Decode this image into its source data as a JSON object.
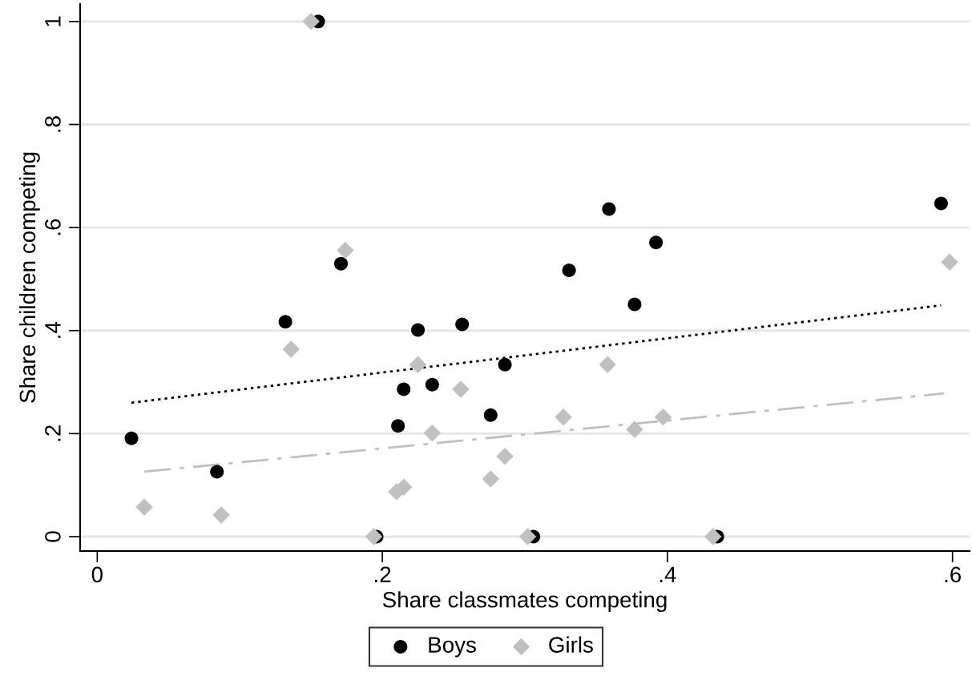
{
  "chart_data": {
    "type": "scatter",
    "xlabel": "Share classmates competing",
    "ylabel": "Share children competing",
    "xlim": [
      -0.012,
      0.612
    ],
    "ylim": [
      -0.028,
      1.034
    ],
    "xticks": [
      0,
      {
        "value": 0.2,
        "label": ".2"
      },
      {
        "value": 0.4,
        "label": ".4"
      },
      {
        "value": 0.6,
        "label": ".6"
      }
    ],
    "yticks": [
      0,
      {
        "value": 0.2,
        "label": ".2"
      },
      {
        "value": 0.4,
        "label": ".4"
      },
      {
        "value": 0.6,
        "label": ".6"
      },
      {
        "value": 0.8,
        "label": ".8"
      },
      1
    ],
    "grid": "y",
    "legend": "bottom",
    "series": [
      {
        "name": "Boys",
        "marker": "circle",
        "color": "#000000",
        "x": [
          0.024,
          0.084,
          0.132,
          0.155,
          0.171,
          0.211,
          0.215,
          0.235,
          0.225,
          0.256,
          0.276,
          0.286,
          0.196,
          0.331,
          0.359,
          0.377,
          0.392,
          0.592,
          0.306,
          0.435
        ],
        "values": [
          0.191,
          0.126,
          0.417,
          1.0,
          0.53,
          0.215,
          0.286,
          0.295,
          0.401,
          0.412,
          0.236,
          0.334,
          0,
          0.517,
          0.636,
          0.451,
          0.571,
          0.647,
          0,
          0
        ]
      },
      {
        "name": "Girls",
        "marker": "diamond",
        "color": "#c0c0c0",
        "x": [
          0.033,
          0.087,
          0.136,
          0.15,
          0.174,
          0.194,
          0.21,
          0.215,
          0.225,
          0.235,
          0.255,
          0.276,
          0.286,
          0.302,
          0.327,
          0.358,
          0.377,
          0.397,
          0.432,
          0.598
        ],
        "values": [
          0.057,
          0.042,
          0.364,
          1.0,
          0.556,
          0,
          0.087,
          0.096,
          0.334,
          0.201,
          0.286,
          0.112,
          0.156,
          0,
          0.232,
          0.334,
          0.208,
          0.232,
          0,
          0.533
        ]
      },
      {
        "type": "line",
        "line_style": "dotted",
        "color": "#000000",
        "x": [
          0.024,
          0.592
        ],
        "values": [
          0.26,
          0.449
        ]
      },
      {
        "type": "line",
        "line_style": "dashed",
        "color": "#c0c0c0",
        "x": [
          0.033,
          0.594
        ],
        "values": [
          0.126,
          0.278
        ]
      }
    ]
  }
}
